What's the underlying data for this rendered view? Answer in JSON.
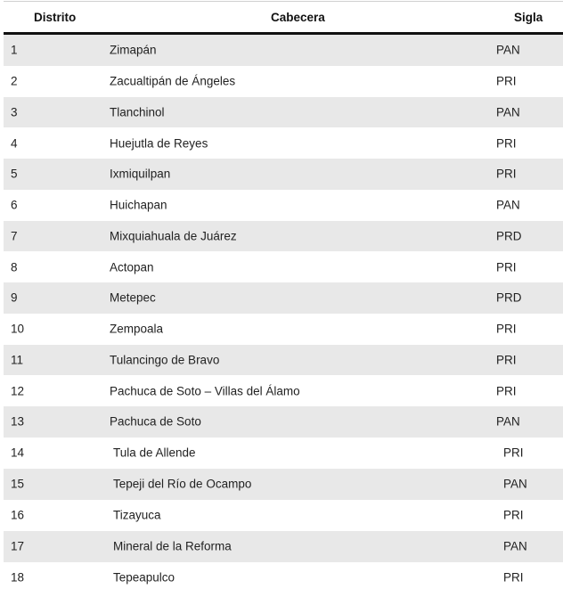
{
  "table": {
    "headers": [
      "Distrito",
      "Cabecera",
      "Sigla"
    ],
    "rows": [
      [
        "1",
        "Zimapán",
        "PAN"
      ],
      [
        "2",
        "Zacualtipán de Ángeles",
        "PRI"
      ],
      [
        "3",
        "Tlanchinol",
        "PAN"
      ],
      [
        "4",
        "Huejutla de Reyes",
        "PRI"
      ],
      [
        "5",
        "Ixmiquilpan",
        "PRI"
      ],
      [
        "6",
        "Huichapan",
        "PAN"
      ],
      [
        "7",
        "Mixquiahuala de Juárez",
        "PRD"
      ],
      [
        "8",
        "Actopan",
        "PRI"
      ],
      [
        "9",
        "Metepec",
        "PRD"
      ],
      [
        "10",
        "Zempoala",
        "PRI"
      ],
      [
        "11",
        "Tulancingo de Bravo",
        "PRI"
      ],
      [
        "12",
        "Pachuca de Soto – Villas del Álamo",
        "PRI"
      ],
      [
        "13",
        "Pachuca de Soto",
        "PAN"
      ],
      [
        "14",
        "Tula de Allende",
        "PRI"
      ],
      [
        "15",
        "Tepeji del Río de Ocampo",
        "PAN"
      ],
      [
        "16",
        "Tizayuca",
        "PRI"
      ],
      [
        "17",
        "Mineral de la Reforma",
        "PAN"
      ],
      [
        "18",
        "Tepeapulco",
        "PRI"
      ]
    ]
  }
}
